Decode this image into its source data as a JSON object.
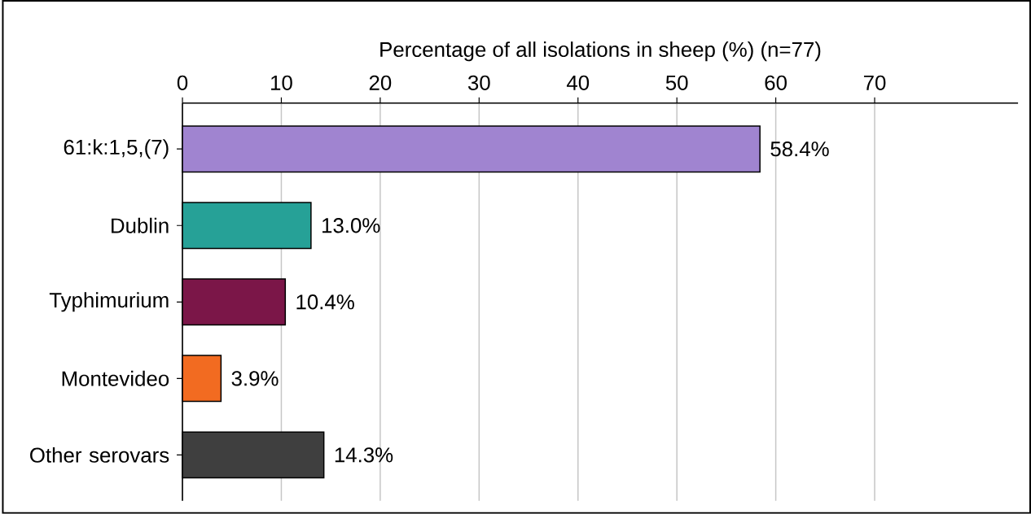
{
  "chart_data": {
    "type": "bar",
    "orientation": "horizontal",
    "xlabel": "Percentage of all isolations in sheep (%) (n=77)",
    "categories": [
      "61:k:1,5,(7)",
      "Dublin",
      "Typhimurium",
      "Montevideo",
      "Other serovars"
    ],
    "values": [
      58.4,
      13.0,
      10.4,
      3.9,
      14.3
    ],
    "colors": [
      "#a084d0",
      "#26a197",
      "#7b1648",
      "#f26b21",
      "#3f3f3f"
    ],
    "value_labels": [
      "58.4%",
      "13.0%",
      "10.4%",
      "3.9%",
      "14.3%"
    ],
    "xlim": [
      0,
      84.5
    ],
    "xticks": [
      0,
      10,
      20,
      30,
      40,
      50,
      60,
      70
    ],
    "grid": "x"
  }
}
